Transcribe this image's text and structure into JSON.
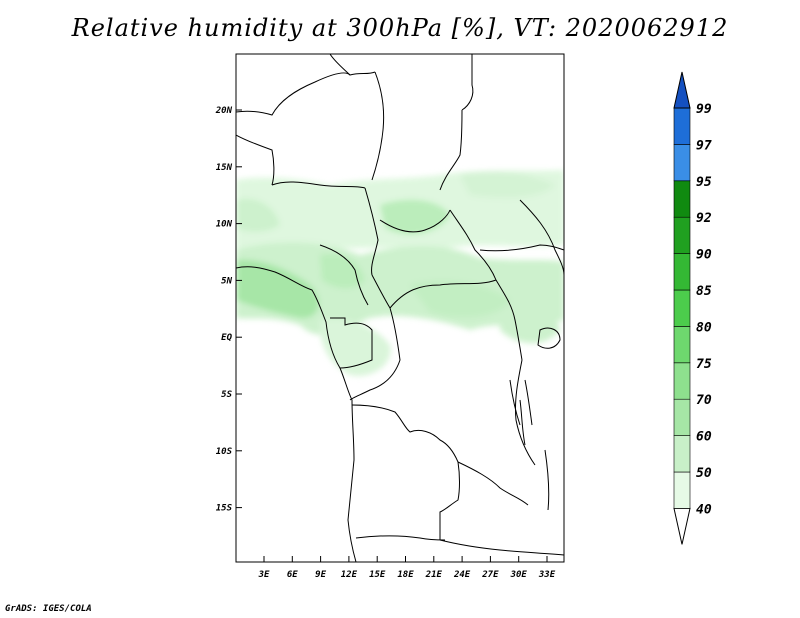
{
  "title": "Relative humidity at 300hPa [%], VT: 2020062912",
  "credit": "GrADS: IGES/COLA",
  "map": {
    "lat_labels": [
      "20N",
      "15N",
      "10N",
      "5N",
      "EQ",
      "5S",
      "10S",
      "15S"
    ],
    "lon_labels": [
      "3E",
      "6E",
      "9E",
      "12E",
      "15E",
      "18E",
      "21E",
      "24E",
      "27E",
      "30E",
      "33E"
    ]
  },
  "colorbar": {
    "levels": [
      "40",
      "50",
      "60",
      "70",
      "75",
      "80",
      "85",
      "90",
      "92",
      "95",
      "97",
      "99"
    ],
    "colors": [
      "#ffffff",
      "#e6fae6",
      "#c8f0c8",
      "#a6e6a6",
      "#8ee08e",
      "#6ed86e",
      "#4ccc4c",
      "#34b834",
      "#20a020",
      "#108a10",
      "#3a8ee6",
      "#1e6ed8",
      "#1450c0"
    ]
  }
}
